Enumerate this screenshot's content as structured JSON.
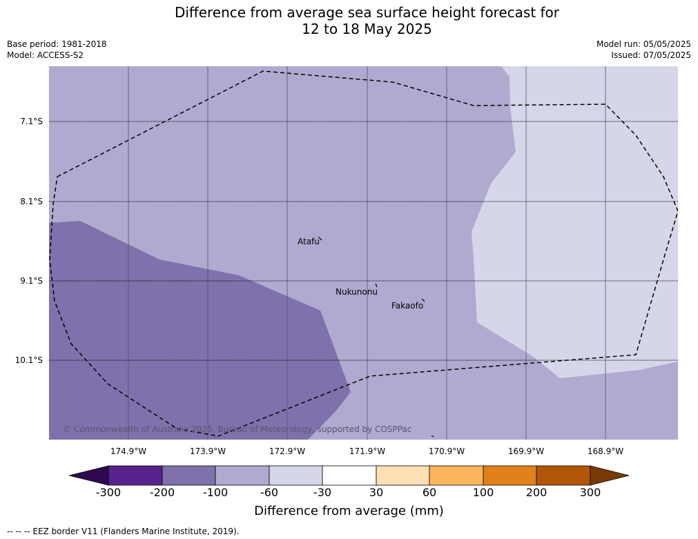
{
  "header": {
    "title_line1": "Difference from average sea surface height forecast for",
    "title_line2": "12 to 18 May 2025",
    "base_period": "Base period: 1981-2018",
    "model": "Model: ACCESS-S2",
    "model_run": "Model run: 05/05/2025",
    "issued": "Issued: 07/05/2025"
  },
  "map": {
    "lat_labels": [
      "7.1°S",
      "8.1°S",
      "9.1°S",
      "10.1°S"
    ],
    "lon_labels": [
      "174.9°W",
      "173.9°W",
      "172.9°W",
      "171.9°W",
      "170.9°W",
      "169.9°W",
      "168.9°W"
    ],
    "places": [
      "Atafu",
      "Nukunonu",
      "Fakaofo"
    ],
    "copyright": "© Commonwealth of Australia 2025, Bureau of Meteorology, supported by COSPPac",
    "region_colors": {
      "lighter": "#d6d6ea",
      "light": "#b0aad0",
      "medium": "#7f71ab"
    }
  },
  "colorbar": {
    "title": "Difference from average (mm)",
    "ticks": [
      "-300",
      "-200",
      "-100",
      "-60",
      "-30",
      "30",
      "60",
      "100",
      "200",
      "300"
    ],
    "colors": [
      "#2d0a50",
      "#56228c",
      "#7f71ab",
      "#b0aad0",
      "#d6d6ea",
      "#ffffff",
      "#fedfb4",
      "#fbb55d",
      "#e0811a",
      "#b05606",
      "#7a3a05"
    ]
  },
  "footnote": "--  --  -- EEZ border V11 (Flanders Marine Institute, 2019)."
}
